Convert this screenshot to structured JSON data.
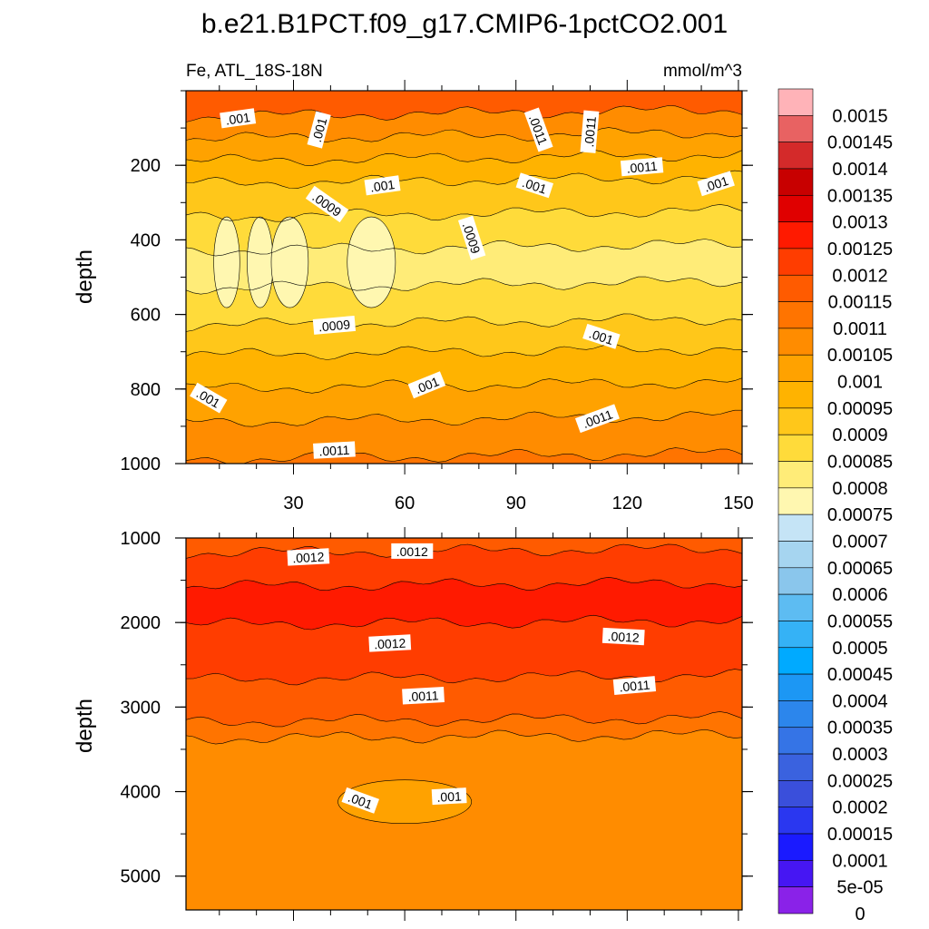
{
  "chart_data": {
    "type": "heatmap",
    "title": "b.e21.B1PCT.f09_g17.CMIP6-1pctCO2.001",
    "variable_label": "Fe, ATL_18S-18N",
    "units_label": "mmol/m^3",
    "x_ticks": [
      "30",
      "60",
      "90",
      "120",
      "150"
    ],
    "x_tick_values": [
      30,
      60,
      90,
      120,
      150
    ],
    "xlim": [
      1,
      151
    ],
    "panels": [
      {
        "id": "upper",
        "ylabel": "depth",
        "ylim": [
          0,
          1000
        ],
        "y_ticks": [
          "200",
          "400",
          "600",
          "800",
          "1000"
        ],
        "y_tick_values": [
          200,
          400,
          600,
          800,
          1000
        ],
        "bands": [
          {
            "d": 0,
            "v": 0.00115
          },
          {
            "d": 60,
            "v": 0.00105
          },
          {
            "d": 120,
            "v": 0.001
          },
          {
            "d": 180,
            "v": 0.00095
          },
          {
            "d": 240,
            "v": 0.0009
          },
          {
            "d": 330,
            "v": 0.00085
          },
          {
            "d": 420,
            "v": 0.0008
          },
          {
            "d": 520,
            "v": 0.00085
          },
          {
            "d": 620,
            "v": 0.0009
          },
          {
            "d": 700,
            "v": 0.00095
          },
          {
            "d": 790,
            "v": 0.001
          },
          {
            "d": 880,
            "v": 0.00105
          },
          {
            "d": 980,
            "v": 0.0011
          }
        ],
        "contour_labels": [
          {
            "text": ".001",
            "x": 15,
            "d": 75,
            "angle": -8
          },
          {
            "text": ".001",
            "x": 37,
            "d": 105,
            "angle": -75
          },
          {
            "text": ".0011",
            "x": 96,
            "d": 105,
            "angle": 70
          },
          {
            "text": ".0011",
            "x": 110,
            "d": 110,
            "angle": -85
          },
          {
            "text": ".0011",
            "x": 124,
            "d": 205,
            "angle": -5
          },
          {
            "text": ".001",
            "x": 54,
            "d": 255,
            "angle": -8
          },
          {
            "text": ".001",
            "x": 95,
            "d": 255,
            "angle": 18
          },
          {
            "text": ".001",
            "x": 144,
            "d": 250,
            "angle": -18
          },
          {
            "text": ".0009",
            "x": 39,
            "d": 305,
            "angle": 35
          },
          {
            "text": ".0009",
            "x": 78,
            "d": 395,
            "angle": 72
          },
          {
            "text": ".0009",
            "x": 41,
            "d": 630,
            "angle": -5
          },
          {
            "text": ".001",
            "x": 113,
            "d": 660,
            "angle": 18
          },
          {
            "text": ".001",
            "x": 66,
            "d": 790,
            "angle": -22
          },
          {
            "text": ".001",
            "x": 7,
            "d": 825,
            "angle": 30
          },
          {
            "text": ".0011",
            "x": 112,
            "d": 880,
            "angle": -20
          },
          {
            "text": ".0011",
            "x": 41,
            "d": 965,
            "angle": -3
          }
        ]
      },
      {
        "id": "lower",
        "ylabel": "depth",
        "ylim": [
          1000,
          5400
        ],
        "y_ticks": [
          "1000",
          "2000",
          "3000",
          "4000",
          "5000"
        ],
        "y_tick_values": [
          1000,
          2000,
          3000,
          4000,
          5000
        ],
        "bands": [
          {
            "d": 1000,
            "v": 0.00115
          },
          {
            "d": 1150,
            "v": 0.0012
          },
          {
            "d": 1550,
            "v": 0.00125
          },
          {
            "d": 2000,
            "v": 0.0012
          },
          {
            "d": 2650,
            "v": 0.00115
          },
          {
            "d": 3150,
            "v": 0.0011
          },
          {
            "d": 3350,
            "v": 0.00105
          }
        ],
        "contour_labels": [
          {
            "text": ".0012",
            "x": 34,
            "d": 1230,
            "angle": -3
          },
          {
            "text": ".0012",
            "x": 62,
            "d": 1160,
            "angle": 0
          },
          {
            "text": ".0012",
            "x": 56,
            "d": 2250,
            "angle": -3
          },
          {
            "text": ".0012",
            "x": 119,
            "d": 2170,
            "angle": 3
          },
          {
            "text": ".0011",
            "x": 65,
            "d": 2870,
            "angle": -3
          },
          {
            "text": ".0011",
            "x": 122,
            "d": 2750,
            "angle": -5
          },
          {
            "text": ".001",
            "x": 48,
            "d": 4110,
            "angle": 20
          },
          {
            "text": ".001",
            "x": 72,
            "d": 4060,
            "angle": -3
          }
        ]
      }
    ],
    "colorbar": {
      "labels": [
        "0.0015",
        "0.00145",
        "0.0014",
        "0.00135",
        "0.0013",
        "0.00125",
        "0.0012",
        "0.00115",
        "0.0011",
        "0.00105",
        "0.001",
        "0.00095",
        "0.0009",
        "0.00085",
        "0.0008",
        "0.00075",
        "0.0007",
        "0.00065",
        "0.0006",
        "0.00055",
        "0.0005",
        "0.00045",
        "0.0004",
        "0.00035",
        "0.0003",
        "0.00025",
        "0.0002",
        "0.00015",
        "0.0001",
        "5e-05",
        "0"
      ],
      "colors": [
        "#ffb3b8",
        "#e86262",
        "#d42a2a",
        "#c80000",
        "#e00000",
        "#ff1a00",
        "#ff3d00",
        "#ff5b00",
        "#ff7400",
        "#ff8c00",
        "#ffa200",
        "#ffb300",
        "#ffc71a",
        "#ffdb3a",
        "#ffec78",
        "#fff7b0",
        "#c5e4f6",
        "#a6d5f0",
        "#8ac6ec",
        "#5dbcf2",
        "#35b2f6",
        "#00aaff",
        "#1c97f4",
        "#2c86ec",
        "#3574e6",
        "#3a62df",
        "#3a4fdb",
        "#2a37f0",
        "#1a1aff",
        "#4616f3",
        "#8a22e8"
      ]
    }
  }
}
